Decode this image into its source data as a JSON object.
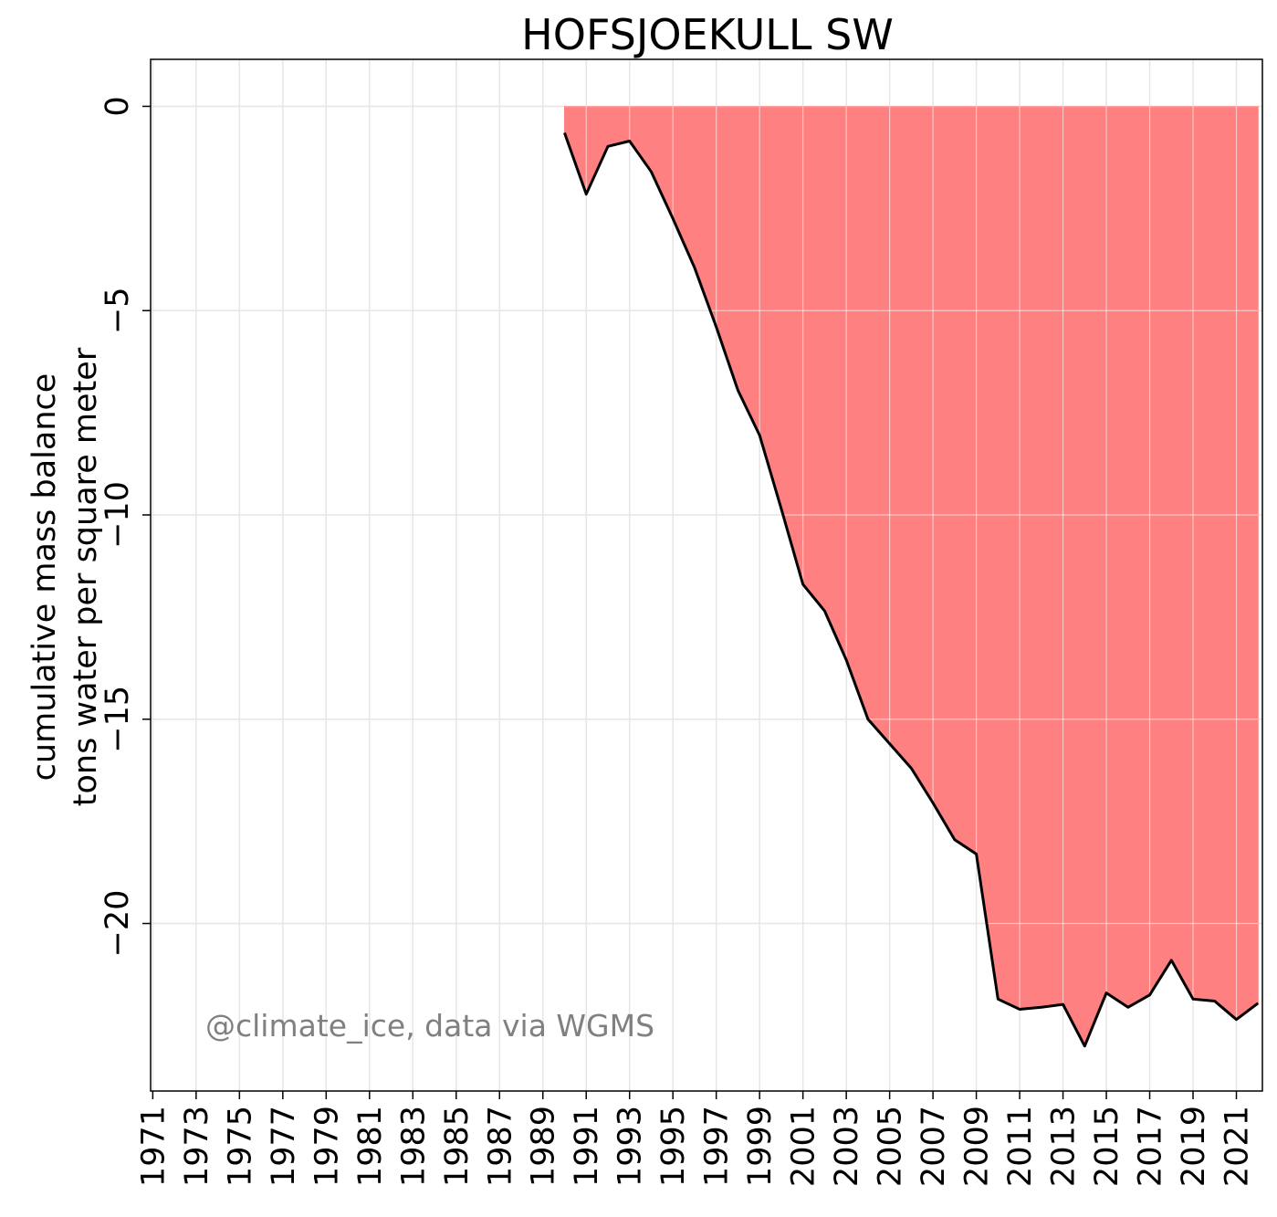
{
  "chart_data": {
    "type": "area",
    "title": "HOFSJOEKULL SW",
    "ylabel_lines": [
      "cumulative mass balance",
      "tons water per square meter"
    ],
    "xlabel": "",
    "x_tick_labels": [
      "1971",
      "1973",
      "1975",
      "1977",
      "1979",
      "1981",
      "1983",
      "1985",
      "1987",
      "1989",
      "1991",
      "1993",
      "1995",
      "1997",
      "1999",
      "2001",
      "2003",
      "2005",
      "2007",
      "2009",
      "2011",
      "2013",
      "2015",
      "2017",
      "2019",
      "2021"
    ],
    "y_ticks": [
      0,
      -5,
      -10,
      -15,
      -20
    ],
    "y_tick_labels": [
      "0",
      "−5",
      "−10",
      "−15",
      "−20"
    ],
    "xlim": [
      1970.9,
      2022.2
    ],
    "ylim": [
      -24.1,
      1.15
    ],
    "grid": true,
    "x": [
      1990,
      1991,
      1992,
      1993,
      1994,
      1995,
      1996,
      1997,
      1998,
      1999,
      2000,
      2001,
      2002,
      2003,
      2004,
      2005,
      2006,
      2007,
      2008,
      2009,
      2010,
      2011,
      2012,
      2013,
      2014,
      2015,
      2016,
      2017,
      2018,
      2019,
      2020,
      2021,
      2022
    ],
    "series": [
      {
        "values": [
          -0.65,
          -2.15,
          -0.98,
          -0.85,
          -1.6,
          -2.75,
          -3.95,
          -5.4,
          -6.95,
          -8.05,
          -9.85,
          -11.7,
          -12.35,
          -13.55,
          -15.0,
          -15.6,
          -16.2,
          -17.05,
          -17.95,
          -18.3,
          -21.85,
          -22.1,
          -22.05,
          -21.98,
          -23.0,
          -21.7,
          -22.05,
          -21.75,
          -20.9,
          -21.85,
          -21.9,
          -22.35,
          -21.95
        ],
        "fill_color": "#ff8080",
        "line_color": "#000000"
      }
    ],
    "annotation": "@climate_ice, data via WGMS",
    "annotation_color": "#808080",
    "grid_color": "#e6e6e6"
  }
}
